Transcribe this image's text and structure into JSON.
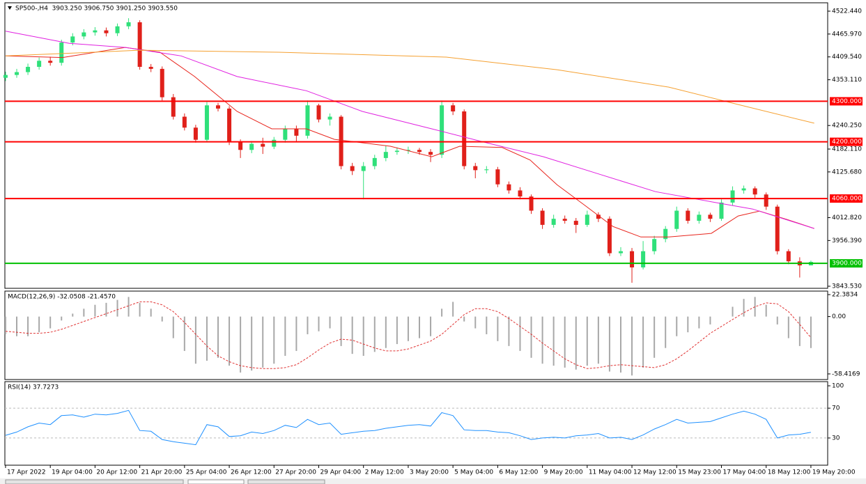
{
  "chart_data": [
    {
      "type": "candlestick",
      "title": "SP500-,H4  3903.250 3906.750 3901.250 3903.550",
      "xlim": [
        -0.06,
        73.5
      ],
      "xticks": [
        {
          "value": 0,
          "label": "17 Apr 2022"
        },
        {
          "value": 4,
          "label": "19 Apr 04:00"
        },
        {
          "value": 8,
          "label": "20 Apr 12:00"
        },
        {
          "value": 12,
          "label": "21 Apr 20:00"
        },
        {
          "value": 16,
          "label": "25 Apr 04:00"
        },
        {
          "value": 20,
          "label": "26 Apr 12:00"
        },
        {
          "value": 24,
          "label": "27 Apr 20:00"
        },
        {
          "value": 28,
          "label": "29 Apr 04:00"
        },
        {
          "value": 32,
          "label": "2 May 12:00"
        },
        {
          "value": 36,
          "label": "3 May 20:00"
        },
        {
          "value": 40,
          "label": "5 May 04:00"
        },
        {
          "value": 44,
          "label": "6 May 12:00"
        },
        {
          "value": 48,
          "label": "9 May 20:00"
        },
        {
          "value": 52,
          "label": "11 May 04:00"
        },
        {
          "value": 56,
          "label": "12 May 12:00"
        },
        {
          "value": 60,
          "label": "15 May 23:00"
        },
        {
          "value": 64,
          "label": "17 May 04:00"
        },
        {
          "value": 68,
          "label": "18 May 12:00"
        },
        {
          "value": 72,
          "label": "19 May 20:00"
        }
      ],
      "ylim": [
        3838.4,
        4543.1
      ],
      "yticks": [
        {
          "value": 4522.44,
          "label": "4522.440"
        },
        {
          "value": 4465.97,
          "label": "4465.970"
        },
        {
          "value": 4409.54,
          "label": "4409.540"
        },
        {
          "value": 4353.11,
          "label": "4353.110"
        },
        {
          "value": 4240.25,
          "label": "4240.250"
        },
        {
          "value": 4182.11,
          "label": "4182.110"
        },
        {
          "value": 4125.68,
          "label": "4125.680"
        },
        {
          "value": 4012.82,
          "label": "4012.820"
        },
        {
          "value": 3956.39,
          "label": "3956.390"
        },
        {
          "value": 3843.53,
          "label": "3843.530"
        }
      ],
      "up_color": "#2fe07a",
      "down_color": "#e0201a",
      "open": [
        4358,
        4365,
        4372,
        4385,
        4400,
        4395,
        4445,
        4460,
        4470,
        4475,
        4468,
        4485,
        4495,
        4385,
        4380,
        4310,
        4262,
        4235,
        4205,
        4290,
        4282,
        4200,
        4180,
        4195,
        4188,
        4205,
        4232,
        4215,
        4290,
        4255,
        4262,
        4140,
        4128,
        4140,
        4160,
        4175,
        4178,
        4180,
        4175,
        4168,
        4290,
        4275,
        4140,
        4130,
        4132,
        4095,
        4080,
        4065,
        4030,
        3995,
        4010,
        4005,
        3995,
        4020,
        4010,
        3925,
        3930,
        3890,
        3930,
        3960,
        3985,
        4030,
        4005,
        4020,
        4010,
        4050,
        4080,
        4085,
        4070,
        4040,
        3930,
        3905,
        3895
      ],
      "high": [
        4373,
        4380,
        4393,
        4408,
        4410,
        4452,
        4468,
        4478,
        4483,
        4482,
        4492,
        4505,
        4500,
        4392,
        4386,
        4318,
        4270,
        4242,
        4298,
        4296,
        4288,
        4206,
        4202,
        4210,
        4212,
        4240,
        4240,
        4302,
        4294,
        4270,
        4266,
        4148,
        4150,
        4168,
        4190,
        4186,
        4188,
        4185,
        4182,
        4302,
        4296,
        4280,
        4148,
        4140,
        4138,
        4102,
        4088,
        4070,
        4036,
        4020,
        4018,
        4012,
        4030,
        4026,
        4016,
        3940,
        3938,
        3955,
        3968,
        3992,
        4040,
        4036,
        4028,
        4025,
        4058,
        4090,
        4092,
        4090,
        4075,
        4045,
        3935,
        3915,
        3906.75
      ],
      "low": [
        4350,
        4358,
        4365,
        4378,
        4388,
        4388,
        4438,
        4453,
        4462,
        4460,
        4461,
        4478,
        4378,
        4372,
        4302,
        4255,
        4228,
        4198,
        4200,
        4275,
        4192,
        4160,
        4172,
        4170,
        4182,
        4198,
        4200,
        4208,
        4248,
        4240,
        4132,
        4118,
        4058,
        4132,
        4152,
        4168,
        4170,
        4168,
        4150,
        4160,
        4266,
        4132,
        4110,
        4122,
        4088,
        4072,
        4058,
        4022,
        3985,
        3988,
        3998,
        3975,
        3990,
        4002,
        3918,
        3918,
        3852,
        3885,
        3922,
        3952,
        3978,
        3998,
        3998,
        4002,
        4005,
        4042,
        4072,
        4062,
        4032,
        3922,
        3898,
        3865,
        3901.25
      ],
      "close": [
        4365,
        4372,
        4385,
        4400,
        4395,
        4445,
        4460,
        4470,
        4475,
        4468,
        4485,
        4495,
        4385,
        4380,
        4310,
        4262,
        4235,
        4205,
        4290,
        4282,
        4200,
        4180,
        4195,
        4188,
        4205,
        4232,
        4215,
        4290,
        4255,
        4262,
        4140,
        4128,
        4140,
        4160,
        4175,
        4178,
        4180,
        4175,
        4168,
        4290,
        4275,
        4140,
        4130,
        4132,
        4095,
        4080,
        4065,
        4030,
        3995,
        4010,
        4005,
        3995,
        4020,
        4010,
        3925,
        3930,
        3890,
        3930,
        3960,
        3985,
        4030,
        4005,
        4020,
        4010,
        4050,
        4080,
        4085,
        4070,
        4040,
        3930,
        3905,
        3895,
        3903.55
      ],
      "lines": [
        {
          "color": "#e8241c",
          "x": [
            0,
            5.1,
            10.7,
            13.8,
            16.9,
            20.7,
            23.8,
            26.9,
            29.4,
            34.4,
            38.1,
            40.6,
            44.4,
            46.9,
            49.3,
            51.8,
            54.3,
            56.8,
            59.3,
            63.1,
            65.5,
            67.4,
            69.9,
            72.3
          ],
          "values": [
            4412,
            4408,
            4433,
            4421,
            4361,
            4275,
            4232,
            4232,
            4206,
            4189,
            4163,
            4189,
            4186,
            4155,
            4094,
            4043,
            3991,
            3965,
            3965,
            3974,
            4017,
            4029,
            4008,
            3986
          ]
        },
        {
          "color": "#e020e0",
          "x": [
            0,
            5.7,
            10.7,
            15.7,
            20.7,
            26.9,
            31.9,
            38.1,
            43.1,
            48.1,
            53.1,
            58.1,
            63.1,
            66.8,
            72.3
          ],
          "values": [
            4473,
            4443,
            4433,
            4412,
            4361,
            4326,
            4275,
            4232,
            4197,
            4163,
            4120,
            4077,
            4052,
            4034,
            3986
          ]
        },
        {
          "color": "#f5a030",
          "x": [
            0,
            12,
            24.4,
            39.4,
            49.3,
            59.3,
            65.5,
            72.3
          ],
          "values": [
            4412,
            4426,
            4421,
            4409,
            4378,
            4335,
            4292,
            4246
          ]
        }
      ],
      "levels": [
        {
          "value": 4300,
          "label": "4300.000",
          "color": "#ff0000"
        },
        {
          "value": 4200,
          "label": "4200.000",
          "color": "#ff0000"
        },
        {
          "value": 4060,
          "label": "4060.000",
          "color": "#ff0000"
        },
        {
          "value": 3900,
          "label": "3900.000",
          "color": "#00c000"
        }
      ]
    },
    {
      "type": "macd",
      "title": "MACD(12,26,9) -32.0508 -21.4570",
      "ylim": [
        -64.14,
        25.96
      ],
      "yticks": [
        22.3834,
        {
          "value": 0,
          "label": "0.00"
        },
        -58.4169
      ],
      "histogram": {
        "color": "#a8a8a8",
        "values": [
          -18,
          -20,
          -20,
          -16,
          -12,
          -4,
          3,
          8,
          12,
          14,
          17,
          20,
          14,
          8,
          -5,
          -22,
          -35,
          -48,
          -45,
          -42,
          -50,
          -57,
          -55,
          -52,
          -48,
          -40,
          -35,
          -18,
          -15,
          -12,
          -30,
          -38,
          -40,
          -36,
          -32,
          -28,
          -25,
          -22,
          -20,
          8,
          15,
          -5,
          -12,
          -18,
          -25,
          -30,
          -35,
          -42,
          -48,
          -50,
          -52,
          -54,
          -50,
          -48,
          -56,
          -57,
          -60,
          -52,
          -42,
          -32,
          -20,
          -16,
          -12,
          -8,
          0,
          10,
          18,
          20,
          12,
          -8,
          -22,
          -30,
          -32.0508
        ]
      },
      "signal": {
        "color": "#e03030",
        "values": [
          -15,
          -16,
          -17,
          -17,
          -16,
          -13,
          -9,
          -5,
          -1,
          3,
          7,
          11,
          15,
          15,
          12,
          5,
          -6,
          -18,
          -30,
          -40,
          -46,
          -50,
          -52,
          -53,
          -53,
          -52,
          -49,
          -42,
          -34,
          -27,
          -23,
          -24,
          -28,
          -32,
          -35,
          -35,
          -33,
          -29,
          -25,
          -18,
          -8,
          2,
          8,
          8,
          5,
          -2,
          -10,
          -18,
          -27,
          -35,
          -43,
          -49,
          -53,
          -52,
          -50,
          -49,
          -50,
          -51,
          -52,
          -49,
          -43,
          -35,
          -26,
          -17,
          -10,
          -3,
          4,
          10,
          14,
          13,
          5,
          -8,
          -21.457
        ]
      }
    },
    {
      "type": "line",
      "title": "RSI(14) 37.7273",
      "ylim": [
        -6.5,
        105.6
      ],
      "yticks": [
        100,
        70,
        30
      ],
      "levels": [
        70,
        30
      ],
      "color": "#1e90ff",
      "values": [
        33.6,
        38,
        45,
        50,
        48,
        60,
        61,
        58,
        62,
        61,
        63,
        67,
        40,
        39,
        28,
        25,
        23,
        21,
        48,
        45,
        32,
        33,
        38,
        36,
        40,
        47,
        44,
        55,
        48,
        50,
        35,
        37,
        39,
        40,
        43,
        45,
        47,
        48,
        46,
        64,
        60,
        41,
        40,
        40,
        38,
        37,
        33,
        28,
        30,
        31,
        30,
        33,
        34,
        36,
        30,
        31,
        28,
        34,
        42,
        48,
        55,
        50,
        51,
        52,
        57,
        62,
        66,
        62,
        55,
        30,
        34,
        35,
        37.7273
      ]
    }
  ]
}
